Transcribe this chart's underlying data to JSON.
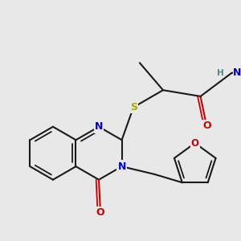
{
  "background_color": "#e8e8e8",
  "bond_color": "#1a1a1a",
  "N_color": "#0000cc",
  "O_color": "#cc0000",
  "S_color": "#aaaa00",
  "H_color": "#4d8888",
  "figsize": [
    3.0,
    3.0
  ],
  "dpi": 100,
  "xlim": [
    0,
    300
  ],
  "ylim": [
    0,
    300
  ]
}
